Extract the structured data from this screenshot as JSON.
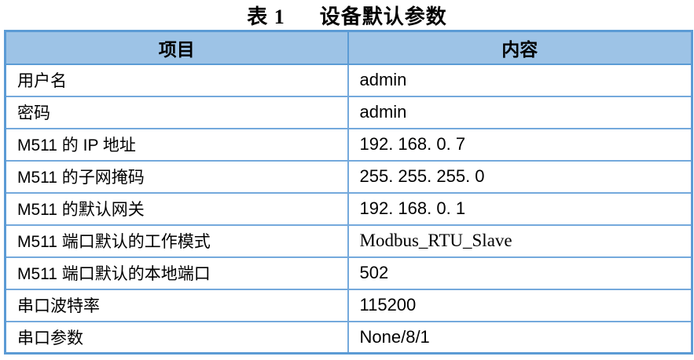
{
  "title": {
    "label": "表 1",
    "caption": "设备默认参数"
  },
  "table": {
    "headers": [
      "项目",
      "内容"
    ],
    "rows": [
      {
        "item": "用户名",
        "value": "admin"
      },
      {
        "item": "密码",
        "value": "admin"
      },
      {
        "item": "M511 的 IP 地址",
        "value": "192. 168. 0. 7"
      },
      {
        "item": "M511 的子网掩码",
        "value": "255. 255. 255. 0"
      },
      {
        "item": "M511 的默认网关",
        "value": "192. 168. 0. 1"
      },
      {
        "item": "M511 端口默认的工作模式",
        "value": "Modbus_RTU_Slave"
      },
      {
        "item": "M511 端口默认的本地端口",
        "value": "502"
      },
      {
        "item": "串口波特率",
        "value": "115200"
      },
      {
        "item": "串口参数",
        "value": "None/8/1"
      }
    ]
  },
  "colors": {
    "header_bg": "#9DC3E6",
    "border": "#5B9BD5",
    "inner_border": "#74A9DC",
    "text": "#000000",
    "background": "#FFFFFF"
  }
}
